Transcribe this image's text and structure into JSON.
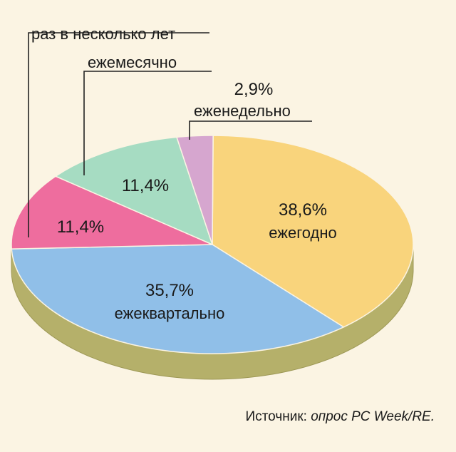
{
  "chart_data": {
    "type": "pie",
    "slices": [
      {
        "label": "ежегодно",
        "value": 38.6,
        "value_text": "38,6%",
        "color": "#f9d47c"
      },
      {
        "label": "ежеквартально",
        "value": 35.7,
        "value_text": "35,7%",
        "color": "#90bfe8"
      },
      {
        "label": "раз в несколько лет",
        "value": 11.4,
        "value_text": "11,4%",
        "color": "#ee6d9e"
      },
      {
        "label": "ежемесячно",
        "value": 11.4,
        "value_text": "11,4%",
        "color": "#a6dcc2"
      },
      {
        "label": "еженедельно",
        "value": 2.9,
        "value_text": "2,9%",
        "color": "#d6a6cf"
      }
    ]
  },
  "source": {
    "prefix": "Источник: ",
    "text": "опрос PC Week/RE."
  },
  "colors": {
    "background": "#fbf4e3",
    "pie_side": "#b5b06a",
    "pie_side_dark": "#9d9856"
  }
}
